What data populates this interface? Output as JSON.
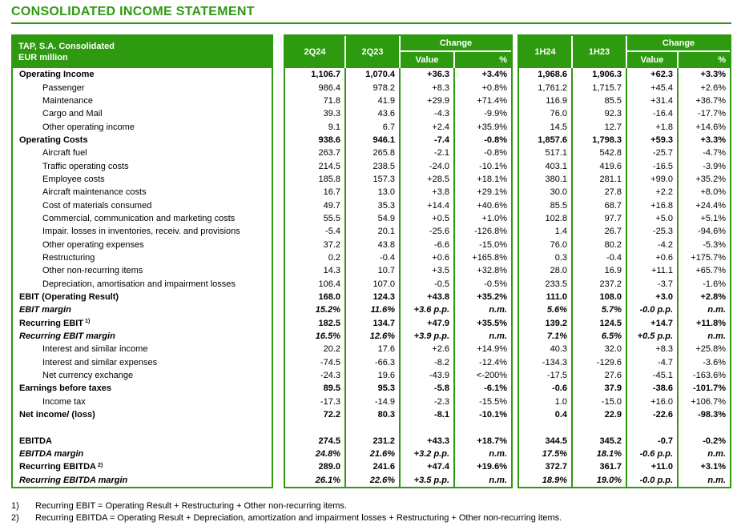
{
  "title": "CONSOLIDATED INCOME STATEMENT",
  "colors": {
    "green": "#2e9a10",
    "header_text": "#ffffff",
    "body_text": "#000000"
  },
  "table": {
    "corner": {
      "line1": "TAP, S.A. Consolidated",
      "line2": "EUR million"
    },
    "quarter": {
      "col1": "2Q24",
      "col2": "2Q23",
      "change": "Change",
      "value": "Value",
      "pct": "%"
    },
    "half": {
      "col1": "1H24",
      "col2": "1H23",
      "change": "Change",
      "value": "Value",
      "pct": "%"
    },
    "columns": [
      "2Q24",
      "2Q23",
      "Change Value",
      "Change %",
      "1H24",
      "1H23",
      "Change Value",
      "Change %"
    ]
  },
  "rows": [
    {
      "label": "Operating Income",
      "bold": true,
      "values": [
        "1,106.7",
        "1,070.4",
        "+36.3",
        "+3.4%",
        "1,968.6",
        "1,906.3",
        "+62.3",
        "+3.3%"
      ]
    },
    {
      "label": "Passenger",
      "indent": true,
      "values": [
        "986.4",
        "978.2",
        "+8.3",
        "+0.8%",
        "1,761.2",
        "1,715.7",
        "+45.4",
        "+2.6%"
      ]
    },
    {
      "label": "Maintenance",
      "indent": true,
      "values": [
        "71.8",
        "41.9",
        "+29.9",
        "+71.4%",
        "116.9",
        "85.5",
        "+31.4",
        "+36.7%"
      ]
    },
    {
      "label": "Cargo and Mail",
      "indent": true,
      "values": [
        "39.3",
        "43.6",
        "-4.3",
        "-9.9%",
        "76.0",
        "92.3",
        "-16.4",
        "-17.7%"
      ]
    },
    {
      "label": "Other operating income",
      "indent": true,
      "values": [
        "9.1",
        "6.7",
        "+2.4",
        "+35.9%",
        "14.5",
        "12.7",
        "+1.8",
        "+14.6%"
      ]
    },
    {
      "label": "Operating Costs",
      "bold": true,
      "values": [
        "938.6",
        "946.1",
        "-7.4",
        "-0.8%",
        "1,857.6",
        "1,798.3",
        "+59.3",
        "+3.3%"
      ]
    },
    {
      "label": "Aircraft fuel",
      "indent": true,
      "values": [
        "263.7",
        "265.8",
        "-2.1",
        "-0.8%",
        "517.1",
        "542.8",
        "-25.7",
        "-4.7%"
      ]
    },
    {
      "label": "Traffic operating costs",
      "indent": true,
      "values": [
        "214.5",
        "238.5",
        "-24.0",
        "-10.1%",
        "403.1",
        "419.6",
        "-16.5",
        "-3.9%"
      ]
    },
    {
      "label": "Employee costs",
      "indent": true,
      "values": [
        "185.8",
        "157.3",
        "+28.5",
        "+18.1%",
        "380.1",
        "281.1",
        "+99.0",
        "+35.2%"
      ]
    },
    {
      "label": "Aircraft maintenance costs",
      "indent": true,
      "values": [
        "16.7",
        "13.0",
        "+3.8",
        "+29.1%",
        "30.0",
        "27.8",
        "+2.2",
        "+8.0%"
      ]
    },
    {
      "label": "Cost of materials consumed",
      "indent": true,
      "values": [
        "49.7",
        "35.3",
        "+14.4",
        "+40.6%",
        "85.5",
        "68.7",
        "+16.8",
        "+24.4%"
      ]
    },
    {
      "label": "Commercial, communication and marketing costs",
      "indent": true,
      "values": [
        "55.5",
        "54.9",
        "+0.5",
        "+1.0%",
        "102.8",
        "97.7",
        "+5.0",
        "+5.1%"
      ]
    },
    {
      "label": "Impair. losses in inventories, receiv. and provisions",
      "indent": true,
      "values": [
        "-5.4",
        "20.1",
        "-25.6",
        "-126.8%",
        "1.4",
        "26.7",
        "-25.3",
        "-94.6%"
      ]
    },
    {
      "label": "Other operating expenses",
      "indent": true,
      "values": [
        "37.2",
        "43.8",
        "-6.6",
        "-15.0%",
        "76.0",
        "80.2",
        "-4.2",
        "-5.3%"
      ]
    },
    {
      "label": "Restructuring",
      "indent": true,
      "values": [
        "0.2",
        "-0.4",
        "+0.6",
        "+165.8%",
        "0.3",
        "-0.4",
        "+0.6",
        "+175.7%"
      ]
    },
    {
      "label": "Other non-recurring items",
      "indent": true,
      "values": [
        "14.3",
        "10.7",
        "+3.5",
        "+32.8%",
        "28.0",
        "16.9",
        "+11.1",
        "+65.7%"
      ]
    },
    {
      "label": "Depreciation, amortisation and impairment losses",
      "indent": true,
      "values": [
        "106.4",
        "107.0",
        "-0.5",
        "-0.5%",
        "233.5",
        "237.2",
        "-3.7",
        "-1.6%"
      ]
    },
    {
      "label": "EBIT (Operating Result)",
      "bold": true,
      "values": [
        "168.0",
        "124.3",
        "+43.8",
        "+35.2%",
        "111.0",
        "108.0",
        "+3.0",
        "+2.8%"
      ]
    },
    {
      "label": "EBIT margin",
      "bold": true,
      "italic": true,
      "values": [
        "15.2%",
        "11.6%",
        "+3.6 p.p.",
        "n.m.",
        "5.6%",
        "5.7%",
        "-0.0 p.p.",
        "n.m."
      ]
    },
    {
      "label": "Recurring EBIT",
      "sup": "1)",
      "bold": true,
      "values": [
        "182.5",
        "134.7",
        "+47.9",
        "+35.5%",
        "139.2",
        "124.5",
        "+14.7",
        "+11.8%"
      ]
    },
    {
      "label": "Recurring EBIT margin",
      "bold": true,
      "italic": true,
      "values": [
        "16.5%",
        "12.6%",
        "+3.9 p.p.",
        "n.m.",
        "7.1%",
        "6.5%",
        "+0.5 p.p.",
        "n.m."
      ]
    },
    {
      "label": "Interest and similar income",
      "indent": true,
      "values": [
        "20.2",
        "17.6",
        "+2.6",
        "+14.9%",
        "40.3",
        "32.0",
        "+8.3",
        "+25.8%"
      ]
    },
    {
      "label": "Interest and similar expenses",
      "indent": true,
      "values": [
        "-74.5",
        "-66.3",
        "-8.2",
        "-12.4%",
        "-134.3",
        "-129.6",
        "-4.7",
        "-3.6%"
      ]
    },
    {
      "label": "Net currency exchange",
      "indent": true,
      "values": [
        "-24.3",
        "19.6",
        "-43.9",
        "<-200%",
        "-17.5",
        "27.6",
        "-45.1",
        "-163.6%"
      ]
    },
    {
      "label": "Earnings before taxes",
      "bold": true,
      "values": [
        "89.5",
        "95.3",
        "-5.8",
        "-6.1%",
        "-0.6",
        "37.9",
        "-38.6",
        "-101.7%"
      ]
    },
    {
      "label": "Income tax",
      "indent": true,
      "values": [
        "-17.3",
        "-14.9",
        "-2.3",
        "-15.5%",
        "1.0",
        "-15.0",
        "+16.0",
        "+106.7%"
      ]
    },
    {
      "label": "Net income/ (loss)",
      "bold": true,
      "values": [
        "72.2",
        "80.3",
        "-8.1",
        "-10.1%",
        "0.4",
        "22.9",
        "-22.6",
        "-98.3%"
      ]
    },
    {
      "blank": true,
      "values": [
        "",
        "",
        "",
        "",
        "",
        "",
        "",
        ""
      ]
    },
    {
      "label": "EBITDA",
      "bold": true,
      "values": [
        "274.5",
        "231.2",
        "+43.3",
        "+18.7%",
        "344.5",
        "345.2",
        "-0.7",
        "-0.2%"
      ]
    },
    {
      "label": "EBITDA margin",
      "bold": true,
      "italic": true,
      "values": [
        "24.8%",
        "21.6%",
        "+3.2 p.p.",
        "n.m.",
        "17.5%",
        "18.1%",
        "-0.6 p.p.",
        "n.m."
      ]
    },
    {
      "label": "Recurring EBITDA",
      "sup": "2)",
      "bold": true,
      "values": [
        "289.0",
        "241.6",
        "+47.4",
        "+19.6%",
        "372.7",
        "361.7",
        "+11.0",
        "+3.1%"
      ]
    },
    {
      "label": "Recurring EBITDA margin",
      "bold": true,
      "italic": true,
      "values": [
        "26.1%",
        "22.6%",
        "+3.5 p.p.",
        "n.m.",
        "18.9%",
        "19.0%",
        "-0.0 p.p.",
        "n.m."
      ]
    }
  ],
  "footnotes": [
    {
      "num": "1)",
      "text": "Recurring EBIT = Operating Result + Restructuring + Other non-recurring items."
    },
    {
      "num": "2)",
      "text": "Recurring EBITDA = Operating Result + Depreciation, amortization and impairment losses + Restructuring + Other non-recurring items."
    }
  ]
}
